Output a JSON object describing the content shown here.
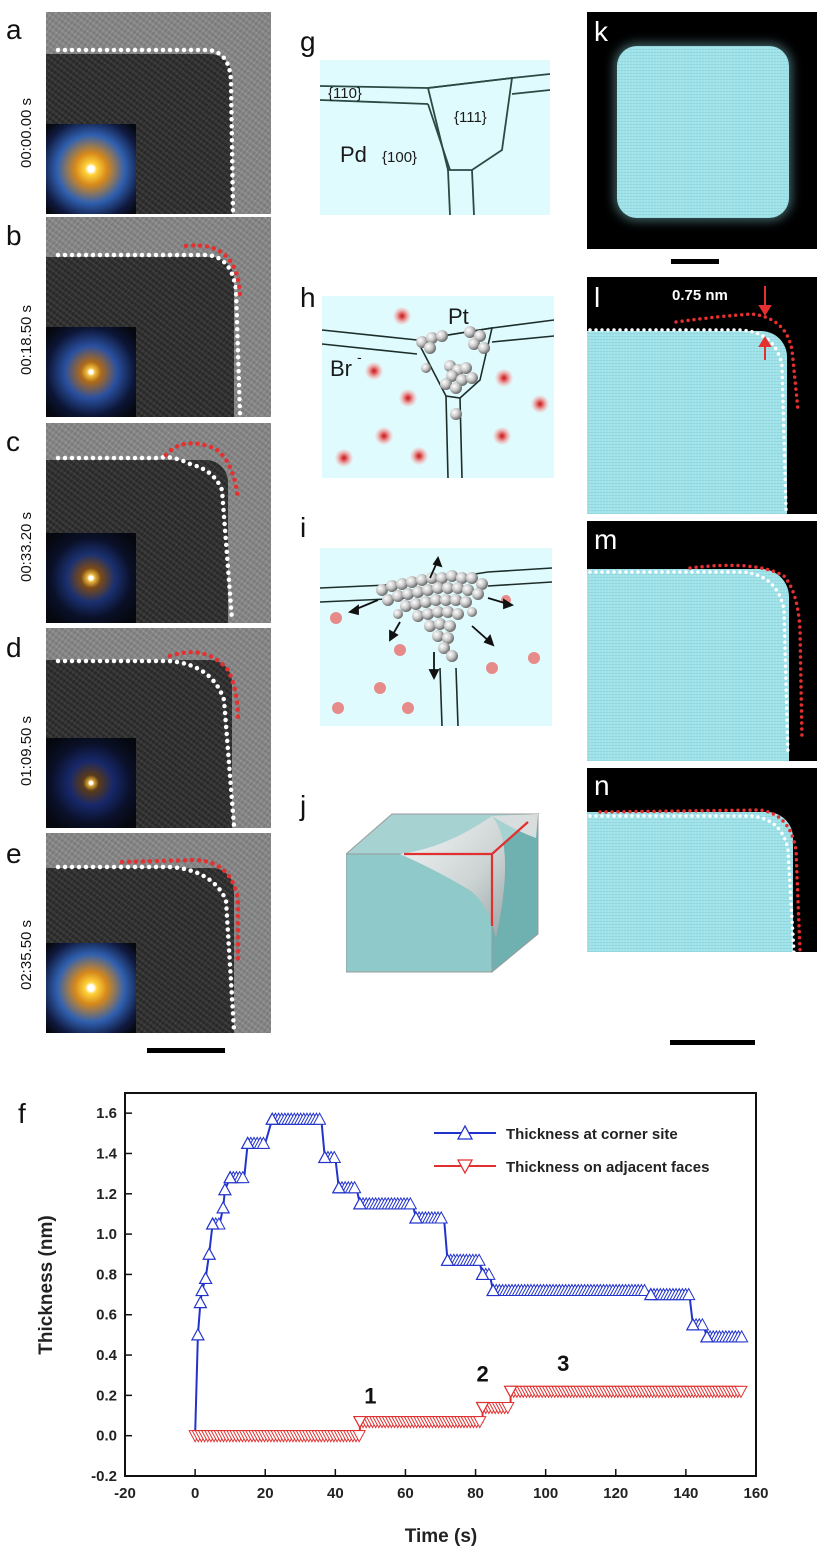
{
  "panels": {
    "a": {
      "label": "a",
      "time": "00:00.00 s"
    },
    "b": {
      "label": "b",
      "time": "00:18.50 s"
    },
    "c": {
      "label": "c",
      "time": "00:33.20 s"
    },
    "d": {
      "label": "d",
      "time": "01:09.50 s"
    },
    "e": {
      "label": "e",
      "time": "02:35.50 s"
    },
    "f": {
      "label": "f"
    },
    "g": {
      "label": "g",
      "facet_110": "{110}",
      "facet_111": "{111}",
      "facet_100": "{100}",
      "metal": "Pd"
    },
    "h": {
      "label": "h",
      "pt": "Pt",
      "br": "Br",
      "br_sup": "-"
    },
    "i": {
      "label": "i"
    },
    "j": {
      "label": "j"
    },
    "k": {
      "label": "k"
    },
    "l": {
      "label": "l",
      "annotation": "0.75 nm"
    },
    "m": {
      "label": "m"
    },
    "n": {
      "label": "n"
    }
  },
  "colors": {
    "corner_series": "#2233cc",
    "face_series": "#e03030",
    "stem_cyan": "#9fe3ea",
    "schematic_bg": "#e0fbfd",
    "cube": "#8fc9c9"
  },
  "chart_data": {
    "type": "line",
    "xlabel": "Time (s)",
    "ylabel": "Thickness (nm)",
    "xlim": [
      -20,
      160
    ],
    "ylim": [
      -0.2,
      1.7
    ],
    "xticks": [
      "-20",
      "0",
      "20",
      "40",
      "60",
      "80",
      "100",
      "120",
      "140",
      "160"
    ],
    "yticks": [
      "-0.2",
      "0.0",
      "0.2",
      "0.4",
      "0.6",
      "0.8",
      "1.0",
      "1.2",
      "1.4",
      "1.6"
    ],
    "legend_position": "top-right",
    "annotations": [
      {
        "text": "1",
        "x": 50,
        "y": 0.16
      },
      {
        "text": "2",
        "x": 82,
        "y": 0.27
      },
      {
        "text": "3",
        "x": 105,
        "y": 0.32
      }
    ],
    "series": [
      {
        "name": "Thickness at corner site",
        "marker": "triangle-up",
        "points": [
          [
            0,
            0
          ],
          [
            0.8,
            0.5
          ],
          [
            1.5,
            0.66
          ],
          [
            2,
            0.72
          ],
          [
            3,
            0.78
          ],
          [
            4,
            0.9
          ],
          [
            5,
            1.05
          ],
          [
            7,
            1.05
          ],
          [
            8,
            1.13
          ],
          [
            8.5,
            1.22
          ],
          [
            10,
            1.28
          ],
          [
            14,
            1.28
          ],
          [
            15,
            1.45
          ],
          [
            20,
            1.45
          ],
          [
            22,
            1.57
          ],
          [
            36,
            1.57
          ],
          [
            37,
            1.38
          ],
          [
            40,
            1.38
          ],
          [
            41,
            1.23
          ],
          [
            46,
            1.23
          ],
          [
            47,
            1.15
          ],
          [
            62,
            1.15
          ],
          [
            63,
            1.08
          ],
          [
            71,
            1.08
          ],
          [
            72,
            0.87
          ],
          [
            81,
            0.87
          ],
          [
            82,
            0.8
          ],
          [
            84,
            0.8
          ],
          [
            85,
            0.72
          ],
          [
            129,
            0.72
          ],
          [
            130,
            0.7
          ],
          [
            141,
            0.7
          ],
          [
            142,
            0.55
          ],
          [
            145,
            0.55
          ],
          [
            146,
            0.49
          ],
          [
            156,
            0.49
          ]
        ]
      },
      {
        "name": "Thickness on adjacent faces",
        "marker": "triangle-down",
        "points": [
          [
            0,
            0
          ],
          [
            47,
            0
          ],
          [
            47,
            0.07
          ],
          [
            82,
            0.07
          ],
          [
            82,
            0.14
          ],
          [
            90,
            0.14
          ],
          [
            90,
            0.22
          ],
          [
            156,
            0.22
          ]
        ]
      }
    ]
  }
}
